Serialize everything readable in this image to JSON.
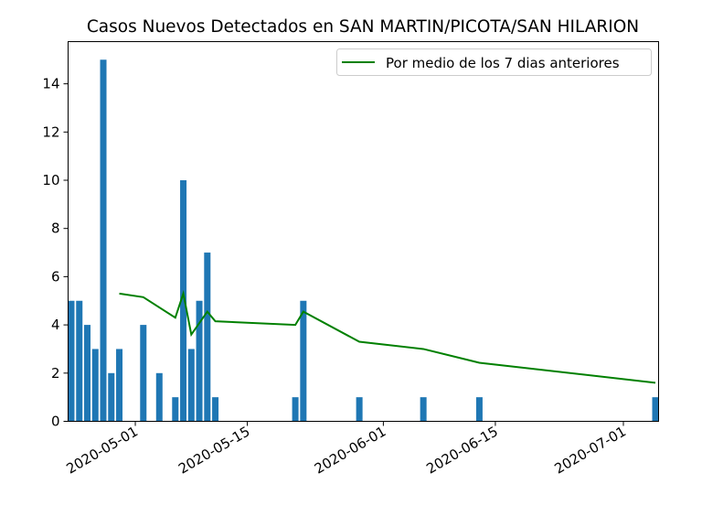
{
  "chart_data": {
    "type": "bar",
    "title": "Casos Nuevos Detectados en SAN MARTIN/PICOTA/SAN HILARION",
    "xlabel": "",
    "ylabel": "",
    "ylim": [
      0,
      15.75
    ],
    "xlim": [
      "2020-04-23",
      "2020-07-05"
    ],
    "yticks": [
      0,
      2,
      4,
      6,
      8,
      10,
      12,
      14
    ],
    "xticks": [
      "2020-05-01",
      "2020-05-15",
      "2020-06-01",
      "2020-06-15",
      "2020-07-01"
    ],
    "bar_color": "#1f77b4",
    "line_color": "#008000",
    "legend": {
      "placement": "top-right"
    },
    "series": [
      {
        "kind": "bar",
        "x": [
          "2020-04-23",
          "2020-04-24",
          "2020-04-25",
          "2020-04-26",
          "2020-04-27",
          "2020-04-28",
          "2020-04-29",
          "2020-05-02",
          "2020-05-04",
          "2020-05-06",
          "2020-05-07",
          "2020-05-08",
          "2020-05-09",
          "2020-05-10",
          "2020-05-11",
          "2020-05-21",
          "2020-05-22",
          "2020-05-29",
          "2020-06-06",
          "2020-06-13",
          "2020-07-05"
        ],
        "values": [
          5,
          5,
          4,
          3,
          15,
          2,
          3,
          4,
          2,
          1,
          10,
          3,
          5,
          7,
          1,
          1,
          5,
          1,
          1,
          1,
          1
        ]
      },
      {
        "kind": "line",
        "name": "Por medio de los 7 dias anteriores",
        "x": [
          "2020-04-29",
          "2020-05-02",
          "2020-05-06",
          "2020-05-07",
          "2020-05-08",
          "2020-05-10",
          "2020-05-11",
          "2020-05-21",
          "2020-05-22",
          "2020-05-29",
          "2020-06-06",
          "2020-06-13",
          "2020-07-05"
        ],
        "values": [
          5.3,
          5.15,
          4.3,
          5.3,
          3.6,
          4.55,
          4.15,
          4.0,
          4.55,
          3.3,
          3.0,
          2.43,
          1.6
        ]
      }
    ]
  }
}
